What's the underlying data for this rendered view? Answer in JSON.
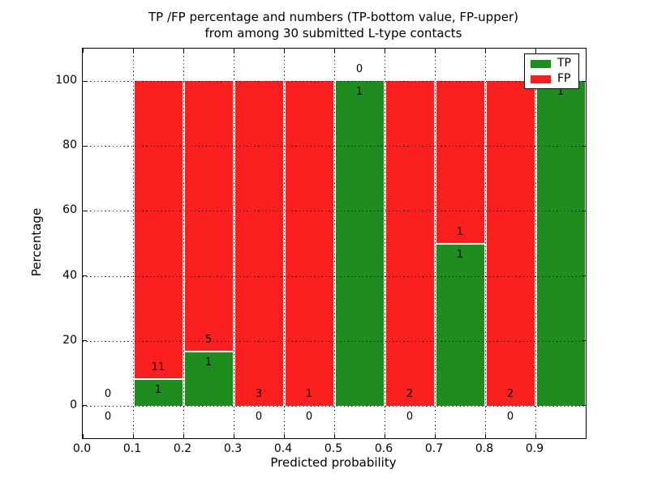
{
  "figure": {
    "title_line1": "TP /FP percentage and numbers (TP-bottom value, FP-upper)",
    "title_line2": "from among 30 submitted L-type contacts"
  },
  "chart_data": {
    "type": "bar",
    "stacked": true,
    "units": "percent of bin total",
    "title": "TP /FP percentage and numbers (TP-bottom value, FP-upper) from among 30 submitted L-type contacts",
    "xlabel": "Predicted probability",
    "ylabel": "Percentage",
    "xlim": [
      0.0,
      1.0
    ],
    "ylim": [
      -10,
      110
    ],
    "x_tick_labels": [
      "0.0",
      "0.1",
      "0.2",
      "0.3",
      "0.4",
      "0.5",
      "0.6",
      "0.7",
      "0.8",
      "0.9"
    ],
    "y_tick_values": [
      0,
      20,
      40,
      60,
      80,
      100
    ],
    "grid": "dotted, drawn above bars",
    "bin_width": 0.1,
    "total_contacts": 30,
    "bins": [
      {
        "range": [
          0.0,
          0.1
        ],
        "tp": 0,
        "fp": 0,
        "tp_pct": 0,
        "fp_pct": 0
      },
      {
        "range": [
          0.1,
          0.2
        ],
        "tp": 1,
        "fp": 11,
        "tp_pct": 8.333,
        "fp_pct": 91.667
      },
      {
        "range": [
          0.2,
          0.3
        ],
        "tp": 1,
        "fp": 5,
        "tp_pct": 16.667,
        "fp_pct": 83.333
      },
      {
        "range": [
          0.3,
          0.4
        ],
        "tp": 0,
        "fp": 3,
        "tp_pct": 0,
        "fp_pct": 100
      },
      {
        "range": [
          0.4,
          0.5
        ],
        "tp": 0,
        "fp": 1,
        "tp_pct": 0,
        "fp_pct": 100
      },
      {
        "range": [
          0.5,
          0.6
        ],
        "tp": 1,
        "fp": 0,
        "tp_pct": 100,
        "fp_pct": 0
      },
      {
        "range": [
          0.6,
          0.7
        ],
        "tp": 0,
        "fp": 2,
        "tp_pct": 0,
        "fp_pct": 100
      },
      {
        "range": [
          0.7,
          0.8
        ],
        "tp": 1,
        "fp": 1,
        "tp_pct": 50,
        "fp_pct": 50
      },
      {
        "range": [
          0.8,
          0.9
        ],
        "tp": 0,
        "fp": 2,
        "tp_pct": 0,
        "fp_pct": 100
      },
      {
        "range": [
          0.9,
          1.0
        ],
        "tp": 1,
        "fp": 0,
        "tp_pct": 100,
        "fp_pct": 0
      }
    ],
    "colors": {
      "tp": "#1e8c1e",
      "fp": "#fc1f1f"
    },
    "legend": {
      "position": "upper right",
      "entries": [
        {
          "label": "TP",
          "series": "tp"
        },
        {
          "label": "FP",
          "series": "fp"
        }
      ]
    }
  }
}
